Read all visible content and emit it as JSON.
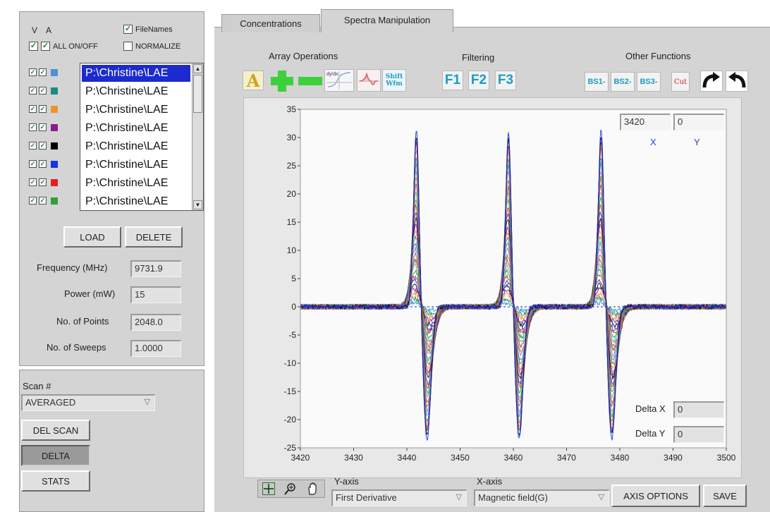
{
  "left_panel": {
    "header_v": "V",
    "header_a": "A",
    "filenames_label": "FileNames",
    "all_on_off_label": "ALL ON/OFF",
    "normalize_label": "NORMALIZE",
    "file_rows": [
      {
        "name": "P:\\Christine\\LAE",
        "color": "#4f8fdc",
        "selected": true
      },
      {
        "name": "P:\\Christine\\LAE",
        "color": "#1f8a7e",
        "selected": false
      },
      {
        "name": "P:\\Christine\\LAE",
        "color": "#f0922b",
        "selected": false
      },
      {
        "name": "P:\\Christine\\LAE",
        "color": "#8a1a8a",
        "selected": false
      },
      {
        "name": "P:\\Christine\\LAE",
        "color": "#000000",
        "selected": false
      },
      {
        "name": "P:\\Christine\\LAE",
        "color": "#1432e6",
        "selected": false
      },
      {
        "name": "P:\\Christine\\LAE",
        "color": "#e61e1e",
        "selected": false
      },
      {
        "name": "P:\\Christine\\LAE",
        "color": "#2ea03a",
        "selected": false
      }
    ],
    "load_label": "LOAD",
    "delete_label": "DELETE",
    "frequency_label": "Frequency (MHz)",
    "frequency_value": "9731.9",
    "power_label": "Power (mW)",
    "power_value": "15",
    "points_label": "No. of Points",
    "points_value": "2048.0",
    "sweeps_label": "No. of Sweeps",
    "sweeps_value": "1.0000",
    "scan_label": "Scan #",
    "scan_value": "AVERAGED",
    "del_scan_label": "DEL SCAN",
    "delta_label": "DELTA",
    "stats_label": "STATS"
  },
  "tabs": [
    {
      "label": "Concentrations",
      "active": false
    },
    {
      "label": "Spectra Manipulation",
      "active": true
    }
  ],
  "toolbar": {
    "array_ops_label": "Array Operations",
    "filtering_label": "Filtering",
    "other_functions_label": "Other Functions",
    "array_icons": [
      "letter-a-icon",
      "plus-icon",
      "minus-icon",
      "derivative-icon",
      "integral-icon",
      "shift-waveform-icon"
    ],
    "dydx_text": "dy/dx",
    "shift_text": "Shift",
    "wfm_text": "Wfm",
    "filters": [
      "F1",
      "F2",
      "F3"
    ],
    "baseline": [
      "BS1-",
      "BS2-",
      "BS3-"
    ],
    "cut_label": "Cut",
    "redo_icon": "redo-arrow-icon",
    "undo_icon": "undo-arrow-icon"
  },
  "graph": {
    "cursor_x": "3420",
    "cursor_y": "0",
    "x_label": "X",
    "y_label": "Y",
    "delta_x_label": "Delta X",
    "delta_x_value": "0",
    "delta_y_label": "Delta Y",
    "delta_y_value": "0"
  },
  "chart_data": {
    "type": "line",
    "xlim": [
      3420,
      3500
    ],
    "ylim": [
      -25,
      35
    ],
    "x_ticks": [
      "3420",
      "3430",
      "3440",
      "3450",
      "3460",
      "3470",
      "3480",
      "3490",
      "3500"
    ],
    "y_ticks": [
      "35",
      "30",
      "25",
      "20",
      "15",
      "10",
      "5",
      "0",
      "-5",
      "-10",
      "-15",
      "-20",
      "-25"
    ],
    "grid": false,
    "baseline_dashed_at": 0,
    "peak_centers": [
      3442,
      3459.3,
      3476.7
    ],
    "peak_max_values": [
      32,
      31.5,
      32
    ],
    "trough_min_values": [
      -23.5,
      -23.5,
      -23.5
    ],
    "series_count": 30,
    "series_colors": [
      "#3a8fd0",
      "#1f8a7e",
      "#f0922b",
      "#8a1a8a",
      "#000000",
      "#1432e6",
      "#e61e1e",
      "#2ea03a",
      "#4ab8c8",
      "#c04040",
      "#7a7a20",
      "#d060b0"
    ]
  },
  "bottom_bar": {
    "y_axis_label": "Y-axis",
    "y_axis_value": "First Derivative",
    "x_axis_label": "X-axis",
    "x_axis_value": "Magnetic field(G)",
    "axis_options_label": "AXIS OPTIONS",
    "save_label": "SAVE",
    "tool_icons": [
      "crosshair-icon",
      "zoom-icon",
      "pan-hand-icon"
    ]
  }
}
